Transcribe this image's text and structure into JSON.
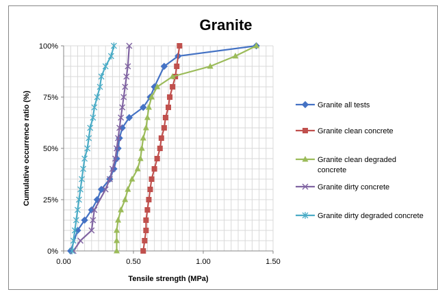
{
  "chart_data": {
    "type": "scatter",
    "title": "Granite",
    "xlabel": "Tensile strength (MPa)",
    "ylabel": "Cumulative occurrence ratio (%)",
    "xlim": [
      0,
      1.5
    ],
    "ylim": [
      0,
      100
    ],
    "x_ticks": [
      "0.00",
      "0.50",
      "1.00",
      "1.50"
    ],
    "y_ticks": [
      "0%",
      "25%",
      "50%",
      "75%",
      "100%"
    ],
    "grid": true,
    "legend_position": "right",
    "series": [
      {
        "name": "Granite all tests",
        "color": "#4472C4",
        "marker": "diamond",
        "x": [
          0.05,
          0.1,
          0.15,
          0.2,
          0.24,
          0.27,
          0.33,
          0.36,
          0.38,
          0.39,
          0.4,
          0.42,
          0.47,
          0.57,
          0.62,
          0.65,
          0.72,
          0.82,
          1.38
        ],
        "y": [
          0,
          10,
          15,
          20,
          25,
          30,
          35,
          40,
          45,
          50,
          55,
          60,
          65,
          70,
          75,
          80,
          90,
          95,
          100
        ]
      },
      {
        "name": "Granite clean concrete",
        "color": "#C0504D",
        "marker": "square",
        "x": [
          0.57,
          0.58,
          0.59,
          0.59,
          0.6,
          0.61,
          0.62,
          0.63,
          0.65,
          0.67,
          0.69,
          0.7,
          0.72,
          0.73,
          0.75,
          0.76,
          0.78,
          0.8,
          0.81,
          0.83
        ],
        "y": [
          0,
          5,
          10,
          15,
          20,
          25,
          30,
          35,
          40,
          45,
          50,
          55,
          60,
          65,
          70,
          75,
          80,
          85,
          90,
          100
        ]
      },
      {
        "name": "Granite clean degraded concrete",
        "color": "#9BBB59",
        "marker": "triangle",
        "x": [
          0.38,
          0.38,
          0.38,
          0.39,
          0.41,
          0.44,
          0.46,
          0.49,
          0.53,
          0.55,
          0.56,
          0.57,
          0.59,
          0.6,
          0.61,
          0.63,
          0.67,
          0.78,
          1.05,
          1.23,
          1.38
        ],
        "y": [
          0,
          5,
          10,
          15,
          20,
          25,
          30,
          35,
          40,
          45,
          50,
          55,
          60,
          65,
          70,
          75,
          80,
          85,
          90,
          95,
          100
        ]
      },
      {
        "name": "Granite dirty concrete",
        "color": "#8064A2",
        "marker": "x",
        "x": [
          0.07,
          0.12,
          0.2,
          0.21,
          0.22,
          0.3,
          0.33,
          0.35,
          0.37,
          0.38,
          0.39,
          0.4,
          0.41,
          0.42,
          0.43,
          0.44,
          0.45,
          0.46,
          0.47
        ],
        "y": [
          0,
          5,
          10,
          15,
          20,
          30,
          35,
          40,
          45,
          50,
          55,
          60,
          65,
          70,
          75,
          80,
          85,
          90,
          100
        ]
      },
      {
        "name": "Granite dirty degraded concrete",
        "color": "#4BACC6",
        "marker": "star",
        "x": [
          0.06,
          0.07,
          0.08,
          0.09,
          0.1,
          0.11,
          0.12,
          0.13,
          0.14,
          0.15,
          0.17,
          0.18,
          0.19,
          0.21,
          0.22,
          0.24,
          0.26,
          0.27,
          0.3,
          0.34,
          0.36
        ],
        "y": [
          0,
          5,
          10,
          15,
          20,
          25,
          30,
          35,
          40,
          45,
          50,
          55,
          60,
          65,
          70,
          75,
          80,
          85,
          90,
          95,
          100
        ]
      }
    ]
  }
}
